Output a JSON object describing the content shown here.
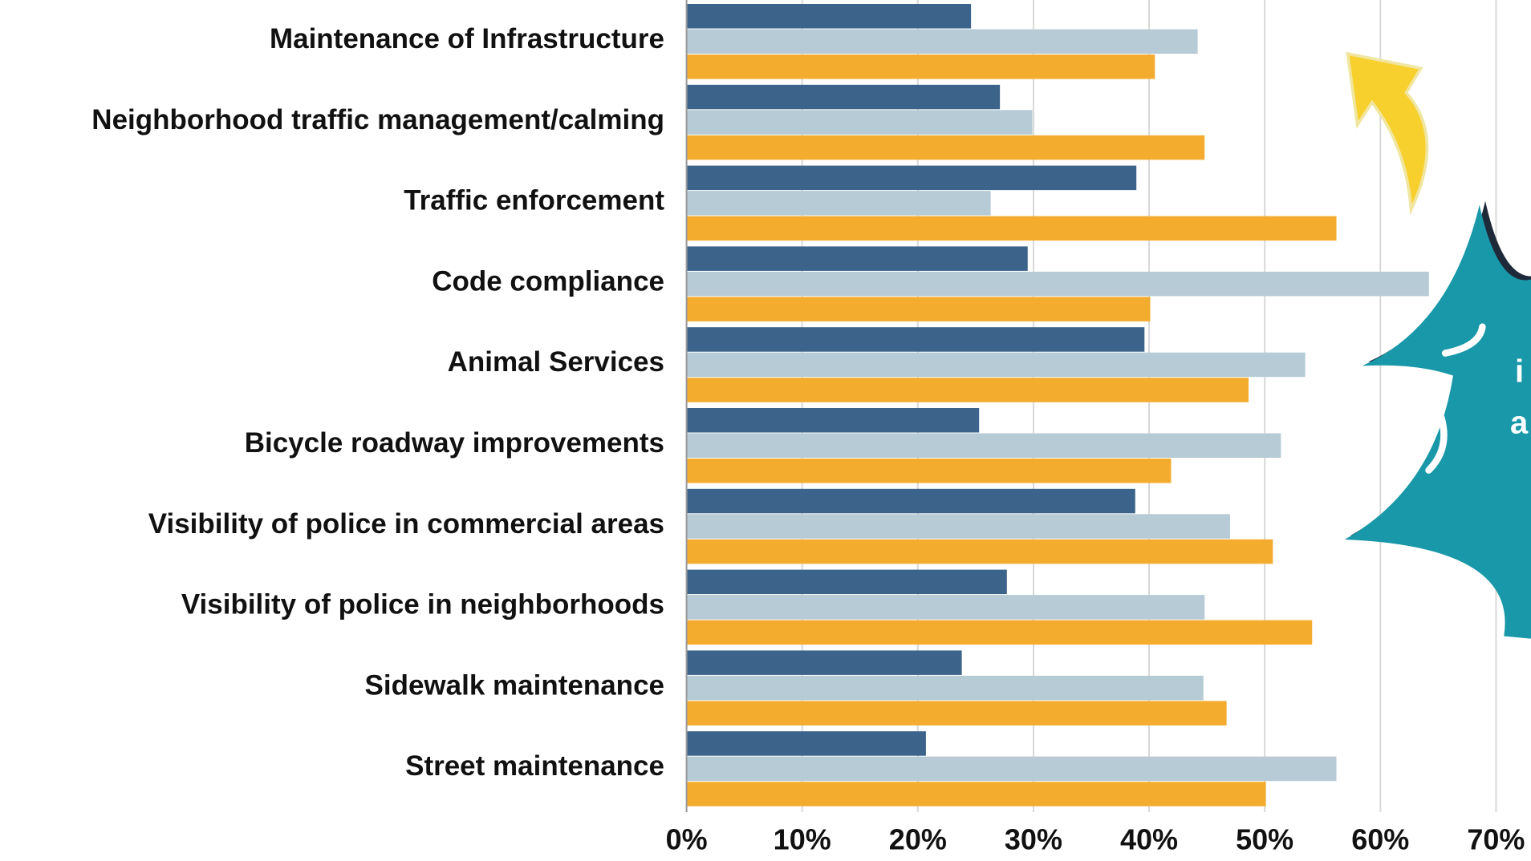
{
  "chart_data": {
    "type": "hbar",
    "categories": [
      "Maintenance of Infrastructure",
      "Neighborhood traffic management/calming",
      "Traffic enforcement",
      "Code compliance",
      "Animal Services",
      "Bicycle roadway improvements",
      "Visibility of police in commercial areas",
      "Visibility of police in neighborhoods",
      "Sidewalk maintenance",
      "Street maintenance"
    ],
    "series": [
      {
        "color": "#3c6389",
        "values": [
          24.6,
          27.1,
          38.9,
          29.5,
          39.6,
          25.3,
          38.8,
          27.7,
          23.8,
          20.7
        ]
      },
      {
        "color": "#b6cbd6",
        "values": [
          44.2,
          29.9,
          26.3,
          64.2,
          53.5,
          51.4,
          47.0,
          44.8,
          44.7,
          56.2
        ]
      },
      {
        "color": "#f4ac2e",
        "values": [
          40.5,
          44.8,
          56.2,
          40.1,
          48.6,
          41.9,
          50.7,
          54.1,
          46.7,
          50.1
        ]
      }
    ],
    "xlim": [
      0,
      70
    ],
    "xticks": [
      {
        "value": 0,
        "label": "0%"
      },
      {
        "value": 10,
        "label": "10%"
      },
      {
        "value": 20,
        "label": "20%"
      },
      {
        "value": 30,
        "label": "30%"
      },
      {
        "value": 40,
        "label": "40%"
      },
      {
        "value": 50,
        "label": "50%"
      },
      {
        "value": 60,
        "label": "60%"
      },
      {
        "value": 70,
        "label": "70%"
      }
    ],
    "grid": true,
    "annotations": [
      "i",
      "a"
    ]
  }
}
